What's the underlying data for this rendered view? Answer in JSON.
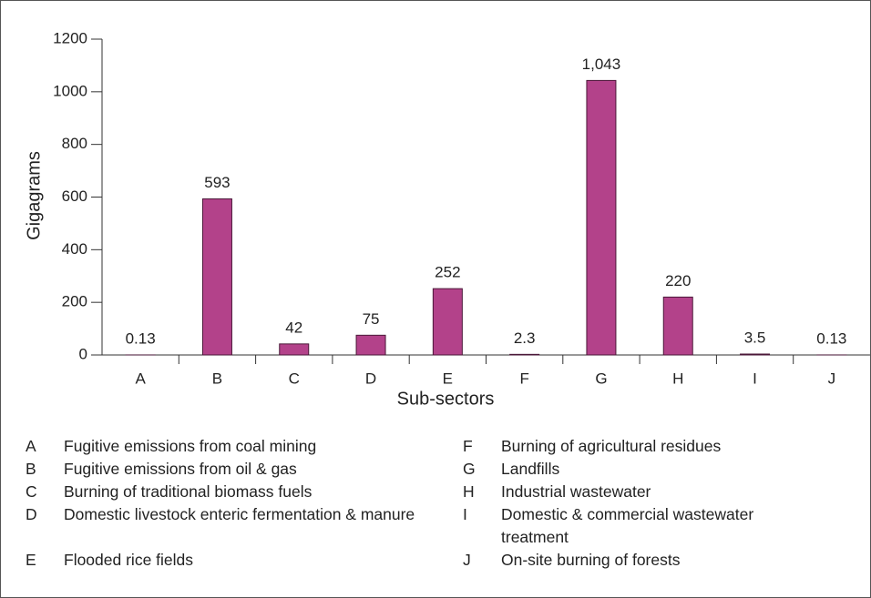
{
  "chart_data": {
    "type": "bar",
    "categories": [
      "A",
      "B",
      "C",
      "D",
      "E",
      "F",
      "G",
      "H",
      "I",
      "J"
    ],
    "values": [
      0.13,
      593,
      42,
      75,
      252,
      2.3,
      1043,
      220,
      3.5,
      0.13
    ],
    "value_labels": [
      "0.13",
      "593",
      "42",
      "75",
      "252",
      "2.3",
      "1,043",
      "220",
      "3.5",
      "0.13"
    ],
    "color": "#b3428a",
    "ylim": [
      0,
      1200
    ],
    "yticks": [
      0,
      200,
      400,
      600,
      800,
      1000,
      1200
    ],
    "ylabel": "Gigagrams",
    "xlabel": "Sub-sectors"
  },
  "legend_key": [
    {
      "letter": "A",
      "text": "Fugitive emissions from coal mining"
    },
    {
      "letter": "B",
      "text": "Fugitive emissions from oil & gas"
    },
    {
      "letter": "C",
      "text": "Burning of traditional biomass fuels"
    },
    {
      "letter": "D",
      "text": "Domestic livestock enteric fermentation & manure"
    },
    {
      "letter": "E",
      "text": "Flooded rice fields"
    },
    {
      "letter": "F",
      "text": "Burning of agricultural residues"
    },
    {
      "letter": "G",
      "text": "Landfills"
    },
    {
      "letter": "H",
      "text": "Industrial wastewater"
    },
    {
      "letter": "I",
      "text": "Domestic & commercial wastewater treatment"
    },
    {
      "letter": "J",
      "text": "On-site burning of forests"
    }
  ]
}
